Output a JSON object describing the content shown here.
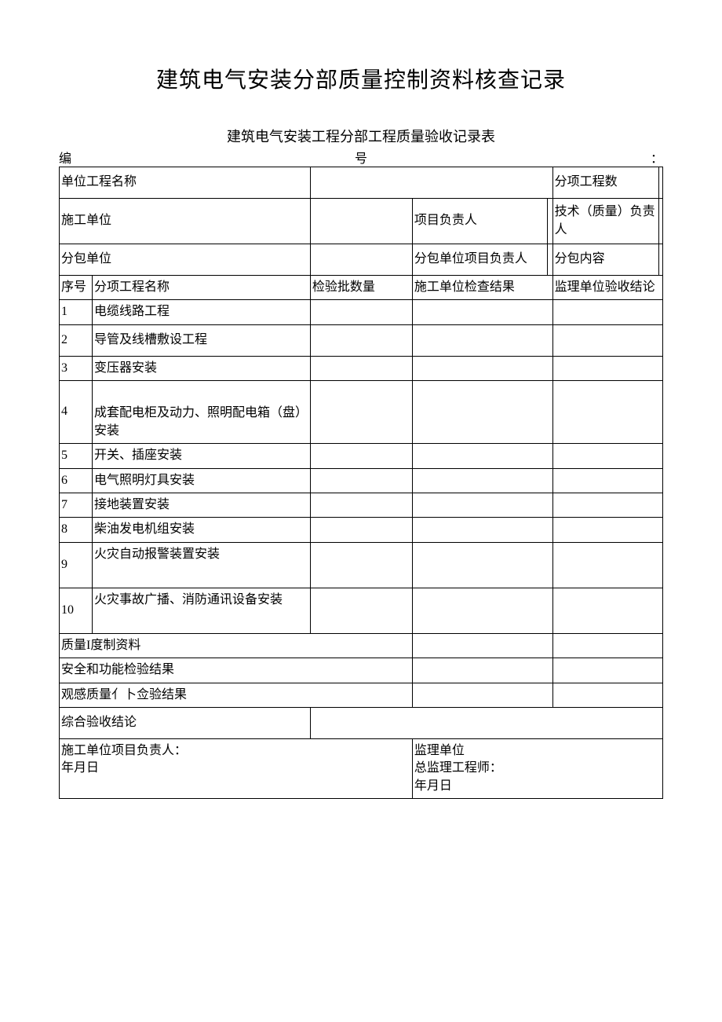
{
  "doc": {
    "main_title": "建筑电气安装分部质量控制资料核查记录",
    "sub_title": "建筑电气安装工程分部工程质量验收记录表",
    "number_prefix": "编",
    "number_mid": "号",
    "number_suffix": "："
  },
  "info": {
    "unit_project_label": "单位工程名称",
    "sub_project_count_label": "分项工程数",
    "construction_unit_label": "施工单位",
    "project_manager_label": "项目负责人",
    "tech_manager_label": "技术（质量）负责人",
    "subcontract_unit_label": "分包单位",
    "subcontract_manager_label": "分包单位项目负责人",
    "subcontract_content_label": "分包内容"
  },
  "headers": {
    "seq": "序号",
    "name": "分项工程名称",
    "qty": "检验批数量",
    "construction_result": "施工单位检查结果",
    "supervision_result": "监理单位验收结论"
  },
  "rows": [
    {
      "seq": "1",
      "name": "电缆线路工程"
    },
    {
      "seq": "2",
      "name": "导管及线槽敷设工程"
    },
    {
      "seq": "3",
      "name": "变压器安装"
    },
    {
      "seq": "4",
      "name": "成套配电柜及动力、照明配电箱（盘）安装"
    },
    {
      "seq": "5",
      "name": "开关、插座安装"
    },
    {
      "seq": "6",
      "name": "电气照明灯具安装"
    },
    {
      "seq": "7",
      "name": "接地装置安装"
    },
    {
      "seq": "8",
      "name": "柴油发电机组安装"
    },
    {
      "seq": "9",
      "name": "火灾自动报警装置安装"
    },
    {
      "seq": "10",
      "name": "火灾事故广播、消防通讯设备安装"
    }
  ],
  "summary": {
    "quality_material": "质量I度制资料",
    "safety_result": "安全和功能检验结果",
    "visual_result": "观感质量亻卜佥验结果",
    "conclusion_label": "综合验收结论"
  },
  "signatures": {
    "construction": "施工单位项目负责人：",
    "construction_date": "年月日",
    "supervision": "监理单位",
    "supervision_engineer": "总监理工程师：",
    "supervision_date": "年月日"
  },
  "style": {
    "bg": "#ffffff",
    "text": "#000000",
    "border": "#000000",
    "title_fontsize": 28,
    "subtitle_fontsize": 18,
    "body_fontsize": 16
  }
}
